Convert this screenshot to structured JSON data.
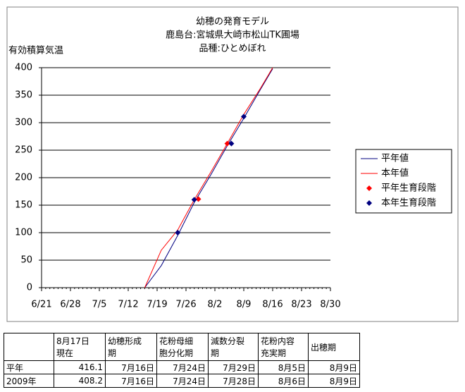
{
  "chart_data": {
    "type": "line",
    "title": [
      "幼穂の発育モデル",
      "鹿島台:宮城県大崎市松山TK圃場",
      "品種:ひとめぼれ"
    ],
    "y_label": "有効積算気温",
    "xlim": [
      "6/21",
      "8/30"
    ],
    "xticks": [
      "6/21",
      "6/28",
      "7/5",
      "7/12",
      "7/19",
      "7/26",
      "8/2",
      "8/9",
      "8/16",
      "8/23",
      "8/30"
    ],
    "ylim": [
      0,
      400
    ],
    "yticks": [
      0,
      50,
      100,
      150,
      200,
      250,
      300,
      350,
      400
    ],
    "grid": true,
    "legend": "right",
    "series": [
      {
        "name": "平年値",
        "color": "#000080",
        "style": "line",
        "x": [
          "7/16",
          "7/20",
          "7/24",
          "7/28",
          "8/1",
          "8/5",
          "8/9",
          "8/13",
          "8/16"
        ],
        "values": [
          0,
          40,
          95,
          155,
          205,
          258,
          308,
          360,
          398
        ]
      },
      {
        "name": "本年値",
        "color": "#ff0000",
        "style": "line",
        "x": [
          "7/16",
          "7/20",
          "7/24",
          "7/28",
          "8/1",
          "8/5",
          "8/9",
          "8/13",
          "8/16"
        ],
        "values": [
          0,
          68,
          105,
          160,
          210,
          262,
          315,
          362,
          400
        ]
      },
      {
        "name": "平年生育段階",
        "color": "#ff0000",
        "style": "marker",
        "x": [
          "7/29",
          "8/5"
        ],
        "values": [
          161,
          262
        ]
      },
      {
        "name": "本年生育段階",
        "color": "#000080",
        "style": "marker",
        "x": [
          "7/24",
          "7/28",
          "8/6",
          "8/9"
        ],
        "values": [
          100,
          160,
          262,
          311
        ]
      }
    ]
  },
  "table": {
    "header": [
      null,
      "8月17日\n現在",
      "幼穂形成\n期",
      "花粉母細\n胞分化期",
      "減数分裂\n期",
      "花粉内容\n充実期",
      "出穂期"
    ],
    "rows": [
      [
        "平年",
        416.1,
        "7月16日",
        "7月24日",
        "7月29日",
        "8月5日",
        "8月9日"
      ],
      [
        "2009年",
        408.2,
        "7月16日",
        "7月24日",
        "7月28日",
        "8月6日",
        "8月9日"
      ]
    ]
  }
}
